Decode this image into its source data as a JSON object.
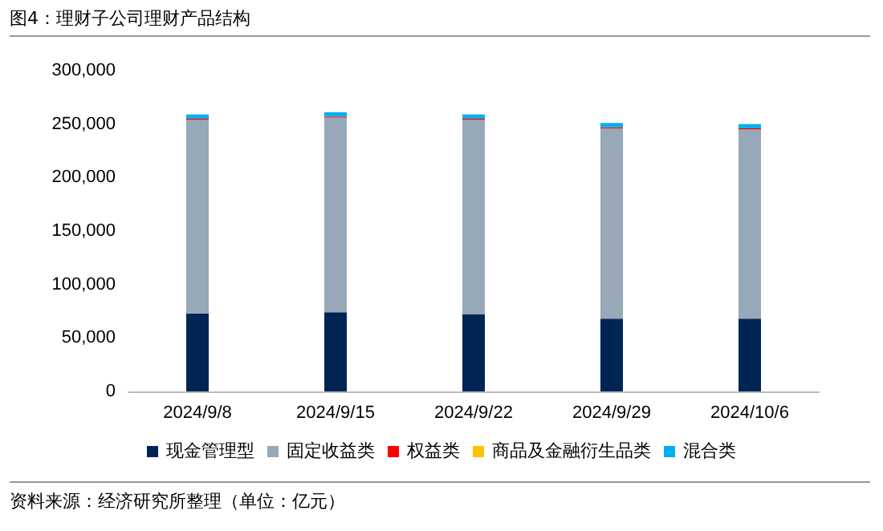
{
  "chart_data": {
    "type": "bar",
    "title": "图4：理财子公司理财产品结构",
    "categories": [
      "2024/9/8",
      "2024/9/15",
      "2024/9/22",
      "2024/9/29",
      "2024/10/6"
    ],
    "series": [
      {
        "name": "现金管理型",
        "color": "#002554",
        "values": [
          73000,
          74000,
          72000,
          68000,
          68000
        ]
      },
      {
        "name": "固定收益类",
        "color": "#97a8b8",
        "values": [
          181000,
          182000,
          182000,
          178000,
          177000
        ]
      },
      {
        "name": "权益类",
        "color": "#ff0000",
        "values": [
          1000,
          1000,
          1000,
          1000,
          1000
        ]
      },
      {
        "name": "商品及金融衍生品类",
        "color": "#ffc000",
        "values": [
          0,
          0,
          0,
          0,
          0
        ]
      },
      {
        "name": "混合类",
        "color": "#00b0f0",
        "values": [
          4000,
          4000,
          4000,
          4000,
          4000
        ]
      }
    ],
    "stacked": true,
    "ylim": [
      0,
      300000
    ],
    "yticks": [
      0,
      {
        "value": 50000,
        "label": "50,000"
      },
      {
        "value": 100000,
        "label": "100,000"
      },
      {
        "value": 150000,
        "label": "150,000"
      },
      {
        "value": 200000,
        "label": "200,000"
      },
      {
        "value": 250000,
        "label": "250,000"
      },
      {
        "value": 300000,
        "label": "300,000"
      }
    ],
    "grid": false,
    "legend": "bottom",
    "annotations": [
      "资料来源：经济研究所整理（单位：亿元）"
    ]
  }
}
